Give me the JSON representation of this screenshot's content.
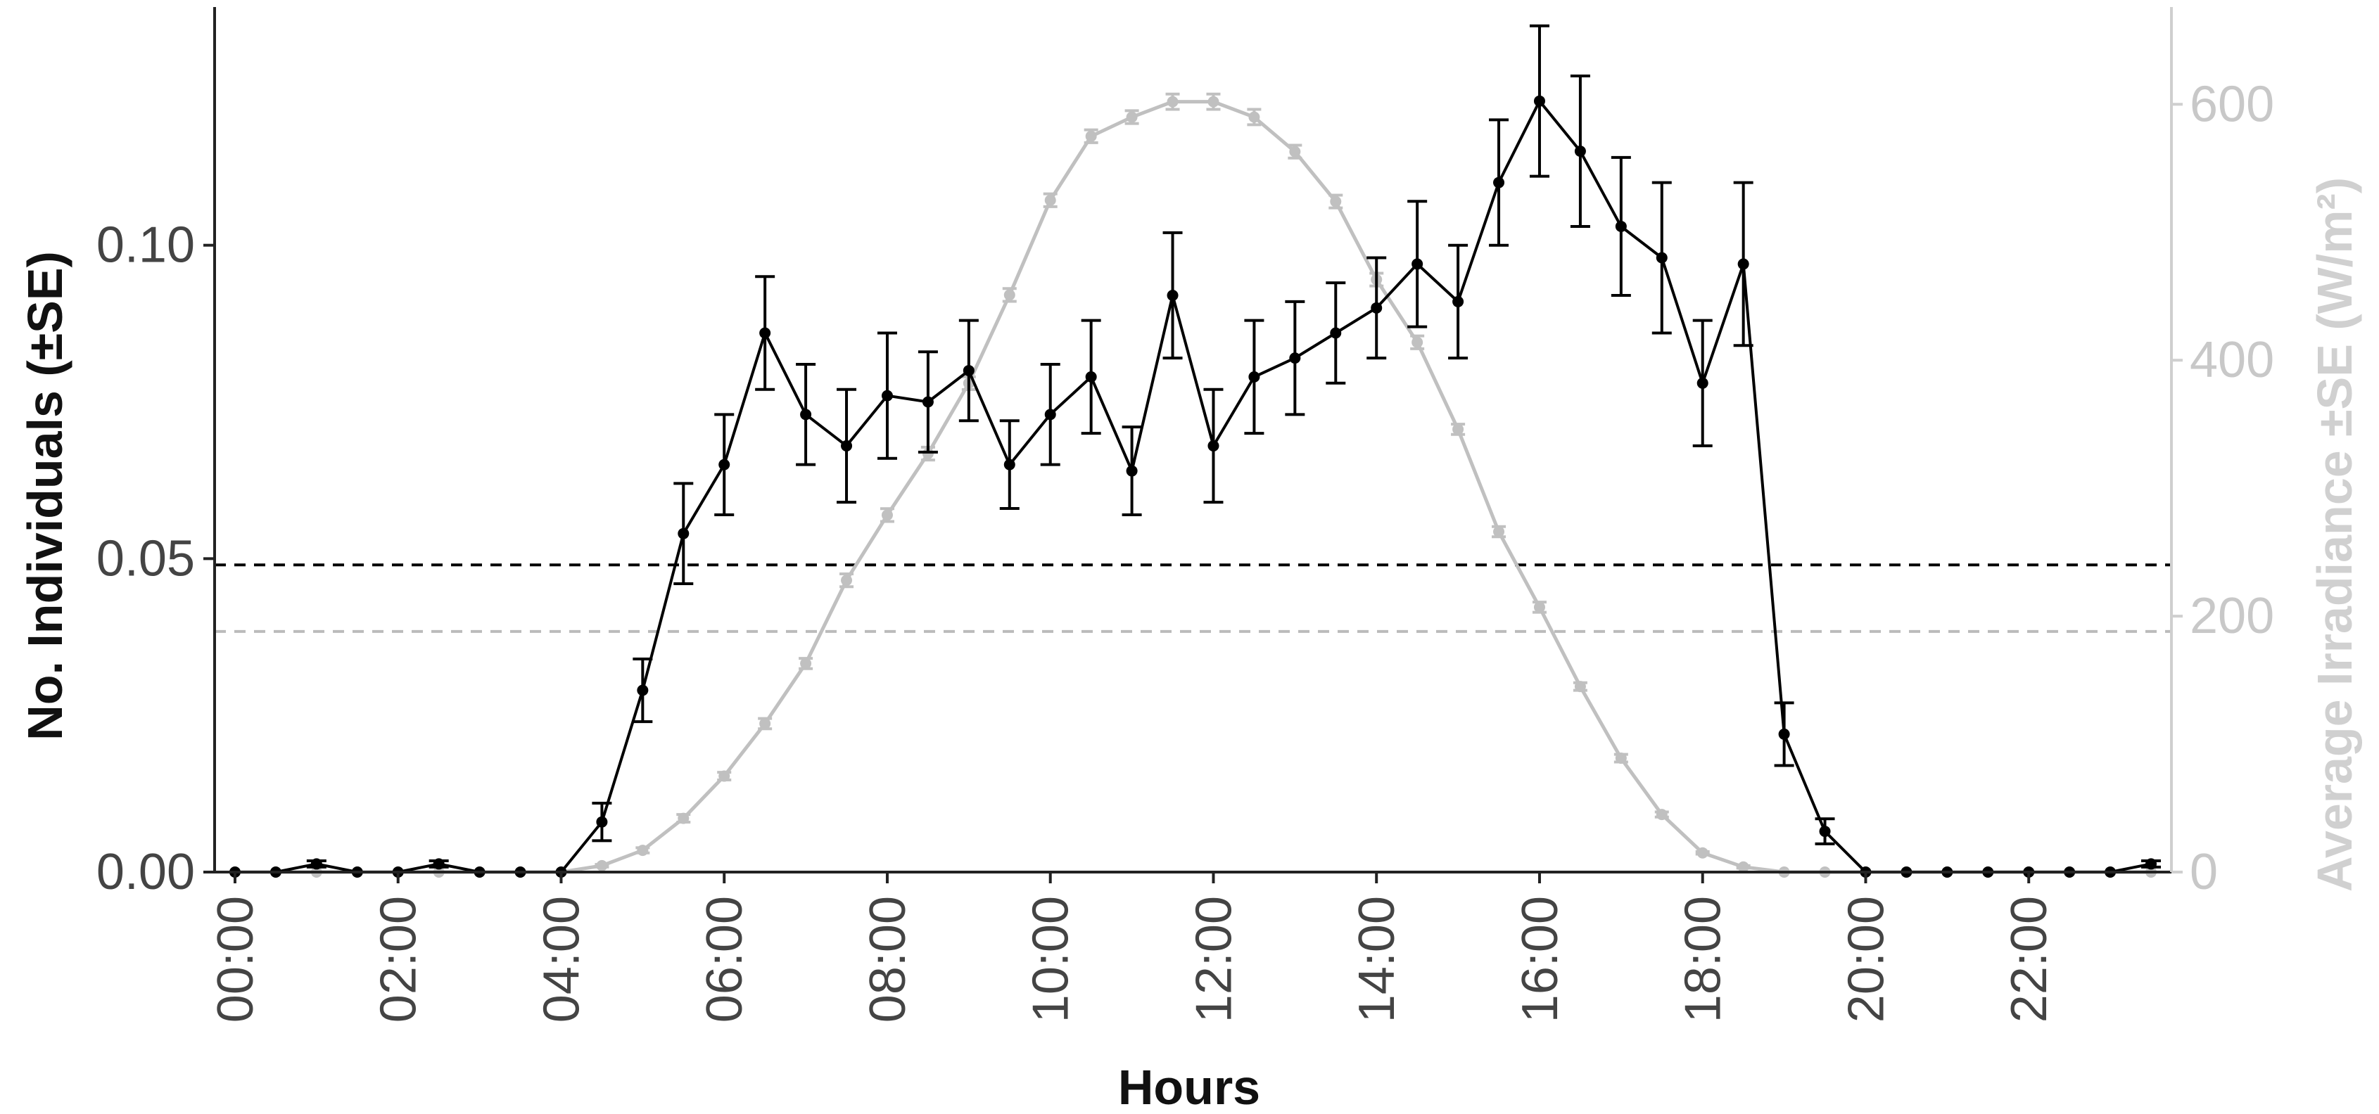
{
  "chart_data": {
    "type": "line",
    "xlabel": "Hours",
    "ylabel": "No. Individuals (±SE)",
    "y2label": "Average Irradiance ±SE (W/m²)",
    "x_tick_labels": [
      "00:00",
      "02:00",
      "04:00",
      "06:00",
      "08:00",
      "10:00",
      "12:00",
      "14:00",
      "16:00",
      "18:00",
      "20:00",
      "22:00"
    ],
    "x_tick_hours": [
      0,
      2,
      4,
      6,
      8,
      10,
      12,
      14,
      16,
      18,
      20,
      22
    ],
    "xlim": [
      -0.25,
      23.75
    ],
    "ylim": [
      0,
      0.138
    ],
    "y_ticks": [
      0.0,
      0.05,
      0.1
    ],
    "y_tick_labels": [
      "0.00",
      "0.05",
      "0.10"
    ],
    "y2lim": [
      0,
      676
    ],
    "y2_ticks": [
      0,
      200,
      400,
      600
    ],
    "y2_tick_labels": [
      "0",
      "200",
      "400",
      "600"
    ],
    "reference_lines": [
      {
        "axis": "left",
        "value": 0.049,
        "style": "dashed",
        "color": "#000000"
      },
      {
        "axis": "right",
        "value": 188,
        "style": "dashed",
        "color": "#bbbbbb"
      }
    ],
    "series": [
      {
        "axis": "left",
        "color": "#000000",
        "x": [
          0,
          0.5,
          1,
          1.5,
          2,
          2.5,
          3,
          3.5,
          4,
          4.5,
          5,
          5.5,
          6,
          6.5,
          7,
          7.5,
          8,
          8.5,
          9,
          9.5,
          10,
          10.5,
          11,
          11.5,
          12,
          12.5,
          13,
          13.5,
          14,
          14.5,
          15,
          15.5,
          16,
          16.5,
          17,
          17.5,
          18,
          18.5,
          19,
          19.5,
          20,
          20.5,
          21,
          21.5,
          22,
          22.5,
          23,
          23.5
        ],
        "values": [
          0,
          0,
          0.0013,
          0,
          0,
          0.0013,
          0,
          0,
          0,
          0.008,
          0.029,
          0.054,
          0.065,
          0.086,
          0.073,
          0.068,
          0.076,
          0.075,
          0.08,
          0.065,
          0.073,
          0.079,
          0.064,
          0.092,
          0.068,
          0.079,
          0.082,
          0.086,
          0.09,
          0.097,
          0.091,
          0.11,
          0.123,
          0.115,
          0.103,
          0.098,
          0.078,
          0.097,
          0.022,
          0.0065,
          0,
          0,
          0,
          0,
          0,
          0,
          0,
          0.0013
        ],
        "errors": [
          0,
          0,
          0.0005,
          0,
          0,
          0.0005,
          0,
          0,
          0,
          0.003,
          0.005,
          0.008,
          0.008,
          0.009,
          0.008,
          0.009,
          0.01,
          0.008,
          0.008,
          0.007,
          0.008,
          0.009,
          0.007,
          0.01,
          0.009,
          0.009,
          0.009,
          0.008,
          0.008,
          0.01,
          0.009,
          0.01,
          0.012,
          0.012,
          0.011,
          0.012,
          0.01,
          0.013,
          0.005,
          0.002,
          0,
          0,
          0,
          0,
          0,
          0,
          0,
          0.0005
        ]
      },
      {
        "axis": "right",
        "color": "#c0c0c0",
        "x": [
          0,
          0.5,
          1,
          1.5,
          2,
          2.5,
          3,
          3.5,
          4,
          4.5,
          5,
          5.5,
          6,
          6.5,
          7,
          7.5,
          8,
          8.5,
          9,
          9.5,
          10,
          10.5,
          11,
          11.5,
          12,
          12.5,
          13,
          13.5,
          14,
          14.5,
          15,
          15.5,
          16,
          16.5,
          17,
          17.5,
          18,
          18.5,
          19,
          19.5,
          20,
          20.5,
          21,
          21.5,
          22,
          22.5,
          23,
          23.5
        ],
        "values": [
          0,
          0,
          0,
          0,
          0,
          0,
          0,
          0,
          0,
          5,
          17,
          42,
          75,
          116,
          163,
          228,
          279,
          327,
          382,
          451,
          525,
          575,
          590,
          602,
          602,
          590,
          563,
          524,
          463,
          414,
          346,
          266,
          207,
          145,
          89,
          45,
          15,
          4,
          0,
          0,
          0,
          0,
          0,
          0,
          0,
          0,
          0,
          0
        ],
        "errors": [
          0,
          0,
          0,
          0,
          0,
          0,
          0,
          0,
          0,
          1,
          2,
          3,
          3,
          4,
          4,
          5,
          5,
          5,
          5,
          5,
          5,
          5,
          5,
          6,
          6,
          6,
          5,
          5,
          5,
          5,
          4,
          4,
          4,
          3,
          3,
          2,
          1,
          1,
          0,
          0,
          0,
          0,
          0,
          0,
          0,
          0,
          0,
          0
        ]
      }
    ]
  }
}
